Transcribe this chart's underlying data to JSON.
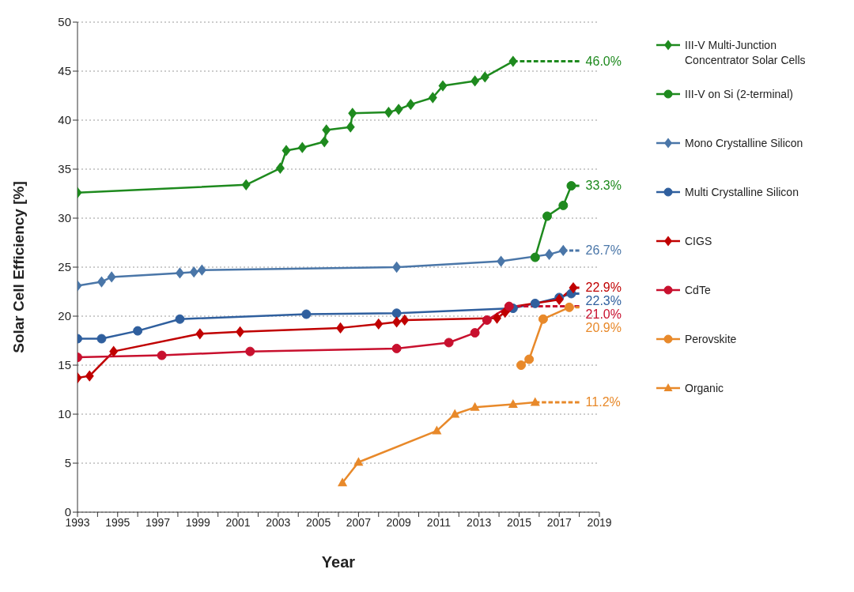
{
  "chart_data": {
    "type": "line",
    "xlabel": "Year",
    "ylabel": "Solar Cell Efficiency [%]",
    "xlim": [
      1993,
      2019
    ],
    "ylim": [
      0,
      50
    ],
    "xticks": [
      1993,
      {
        "value": 1994,
        "label": null
      },
      1995,
      {
        "value": 1996,
        "label": null
      },
      1997,
      {
        "value": 1998,
        "label": null
      },
      1999,
      {
        "value": 2000,
        "label": null
      },
      2001,
      {
        "value": 2002,
        "label": null
      },
      2003,
      {
        "value": 2004,
        "label": null
      },
      2005,
      {
        "value": 2006,
        "label": null
      },
      2007,
      {
        "value": 2008,
        "label": null
      },
      2009,
      {
        "value": 2010,
        "label": null
      },
      2011,
      {
        "value": 2012,
        "label": null
      },
      2013,
      {
        "value": 2014,
        "label": null
      },
      2015,
      {
        "value": 2016,
        "label": null
      },
      2017,
      {
        "value": 2018,
        "label": null
      },
      2019
    ],
    "yticks": [
      0,
      5,
      10,
      15,
      20,
      25,
      30,
      35,
      40,
      45,
      50
    ],
    "grid": "y",
    "legend": "right",
    "line_style": "solid",
    "series": [
      {
        "name": "III-V Multi-Junction Concentrator Solar Cells",
        "color": "#1e8a1e",
        "marker": "diamond",
        "x": [
          1993,
          2001.4,
          2003.1,
          2003.4,
          2004.2,
          2005.3,
          2005.4,
          2006.6,
          2006.7,
          2008.5,
          2009.0,
          2009.6,
          2010.7,
          2011.2,
          2012.8,
          2013.3,
          2014.7
        ],
        "values": [
          32.6,
          33.4,
          35.1,
          36.9,
          37.2,
          37.8,
          39.0,
          39.3,
          40.7,
          40.8,
          41.1,
          41.6,
          42.3,
          43.5,
          44.0,
          44.4,
          46.0
        ]
      },
      {
        "name": "III-V on Si (2-terminal)",
        "color": "#1e8a1e",
        "marker": "circle",
        "x": [
          2015.8,
          2016.4,
          2017.2,
          2017.6
        ],
        "values": [
          26.0,
          30.2,
          31.3,
          33.3
        ]
      },
      {
        "name": "Mono Crystalline Silicon",
        "color": "#4a76a8",
        "marker": "diamond",
        "x": [
          1993,
          1994.2,
          1994.7,
          1998.1,
          1998.8,
          1999.2,
          2008.9,
          2014.1,
          2016.5,
          2017.2
        ],
        "values": [
          23.1,
          23.5,
          24.0,
          24.4,
          24.5,
          24.7,
          25.0,
          25.6,
          26.3,
          26.7
        ]
      },
      {
        "name": "Multi Crystalline Silicon",
        "color": "#2f5f9e",
        "marker": "circle",
        "x": [
          1993,
          1994.2,
          1996.0,
          1998.1,
          2004.4,
          2008.9,
          2014.7,
          2015.8,
          2017.0,
          2017.6
        ],
        "values": [
          17.7,
          17.7,
          18.5,
          19.7,
          20.2,
          20.3,
          20.8,
          21.3,
          21.9,
          22.3
        ]
      },
      {
        "name": "CIGS",
        "color": "#c00000",
        "marker": "diamond",
        "x": [
          1993,
          1993.6,
          1994.8,
          1999.1,
          2001.1,
          2006.1,
          2008.0,
          2008.9,
          2009.3,
          2013.9,
          2014.3,
          2014.5,
          2017.0,
          2017.7
        ],
        "values": [
          13.7,
          13.9,
          16.4,
          18.2,
          18.4,
          18.8,
          19.2,
          19.4,
          19.6,
          19.8,
          20.4,
          20.9,
          21.7,
          22.9
        ]
      },
      {
        "name": "CdTe",
        "color": "#c8102e",
        "marker": "circle",
        "x": [
          1993,
          1997.2,
          2001.6,
          2008.9,
          2011.5,
          2012.8,
          2013.4,
          2014.5
        ],
        "values": [
          15.8,
          16.0,
          16.4,
          16.7,
          17.3,
          18.3,
          19.6,
          21.0
        ]
      },
      {
        "name": "Perovskite",
        "color": "#e8892a",
        "marker": "circle",
        "x": [
          2015.1,
          2015.5,
          2016.2,
          2017.5
        ],
        "values": [
          15.0,
          15.6,
          19.7,
          20.9
        ]
      },
      {
        "name": "Organic",
        "color": "#e8892a",
        "marker": "triangle",
        "x": [
          2006.2,
          2007.0,
          2010.9,
          2011.8,
          2012.8,
          2014.7,
          2015.8
        ],
        "values": [
          3.0,
          5.1,
          8.3,
          10.0,
          10.7,
          11.0,
          11.2
        ]
      },
      {
        "color": "#1e8a1e",
        "line_style": "dashed",
        "marker": "none",
        "x": [
          2014.7,
          2018
        ],
        "values": [
          46.0,
          46.0
        ],
        "value_labels": [
          null,
          "46.0%"
        ]
      },
      {
        "color": "#1e8a1e",
        "line_style": "dashed",
        "marker": "none",
        "x": [
          2017.6,
          2018
        ],
        "values": [
          33.3,
          33.3
        ],
        "value_labels": [
          null,
          "33.3%"
        ]
      },
      {
        "color": "#4a76a8",
        "line_style": "dashed",
        "marker": "none",
        "x": [
          2017.2,
          2018
        ],
        "values": [
          26.7,
          26.7
        ],
        "value_labels": [
          null,
          "26.7%"
        ]
      },
      {
        "color": "#c00000",
        "line_style": "dashed",
        "marker": "none",
        "x": [
          2017.7,
          2018
        ],
        "values": [
          22.9,
          22.9
        ],
        "value_labels": [
          null,
          "22.9%"
        ]
      },
      {
        "color": "#2f5f9e",
        "line_style": "dashed",
        "marker": "none",
        "x": [
          2017.6,
          2018
        ],
        "values": [
          22.3,
          22.3
        ],
        "value_labels": [
          null,
          "22.3%"
        ]
      },
      {
        "color": "#c8102e",
        "line_style": "dashed",
        "marker": "none",
        "x": [
          2014.5,
          2018
        ],
        "values": [
          21.0,
          21.0
        ],
        "value_labels": [
          null,
          "21.0%"
        ]
      },
      {
        "color": "#e8892a",
        "line_style": "dashed",
        "marker": "none",
        "x": [
          2017.5,
          2018
        ],
        "values": [
          20.9,
          20.9
        ],
        "value_labels": [
          null,
          "20.9%"
        ]
      },
      {
        "color": "#e8892a",
        "line_style": "dashed",
        "marker": "none",
        "x": [
          2015.8,
          2018
        ],
        "values": [
          11.2,
          11.2
        ],
        "value_labels": [
          null,
          "11.2%"
        ]
      }
    ]
  }
}
